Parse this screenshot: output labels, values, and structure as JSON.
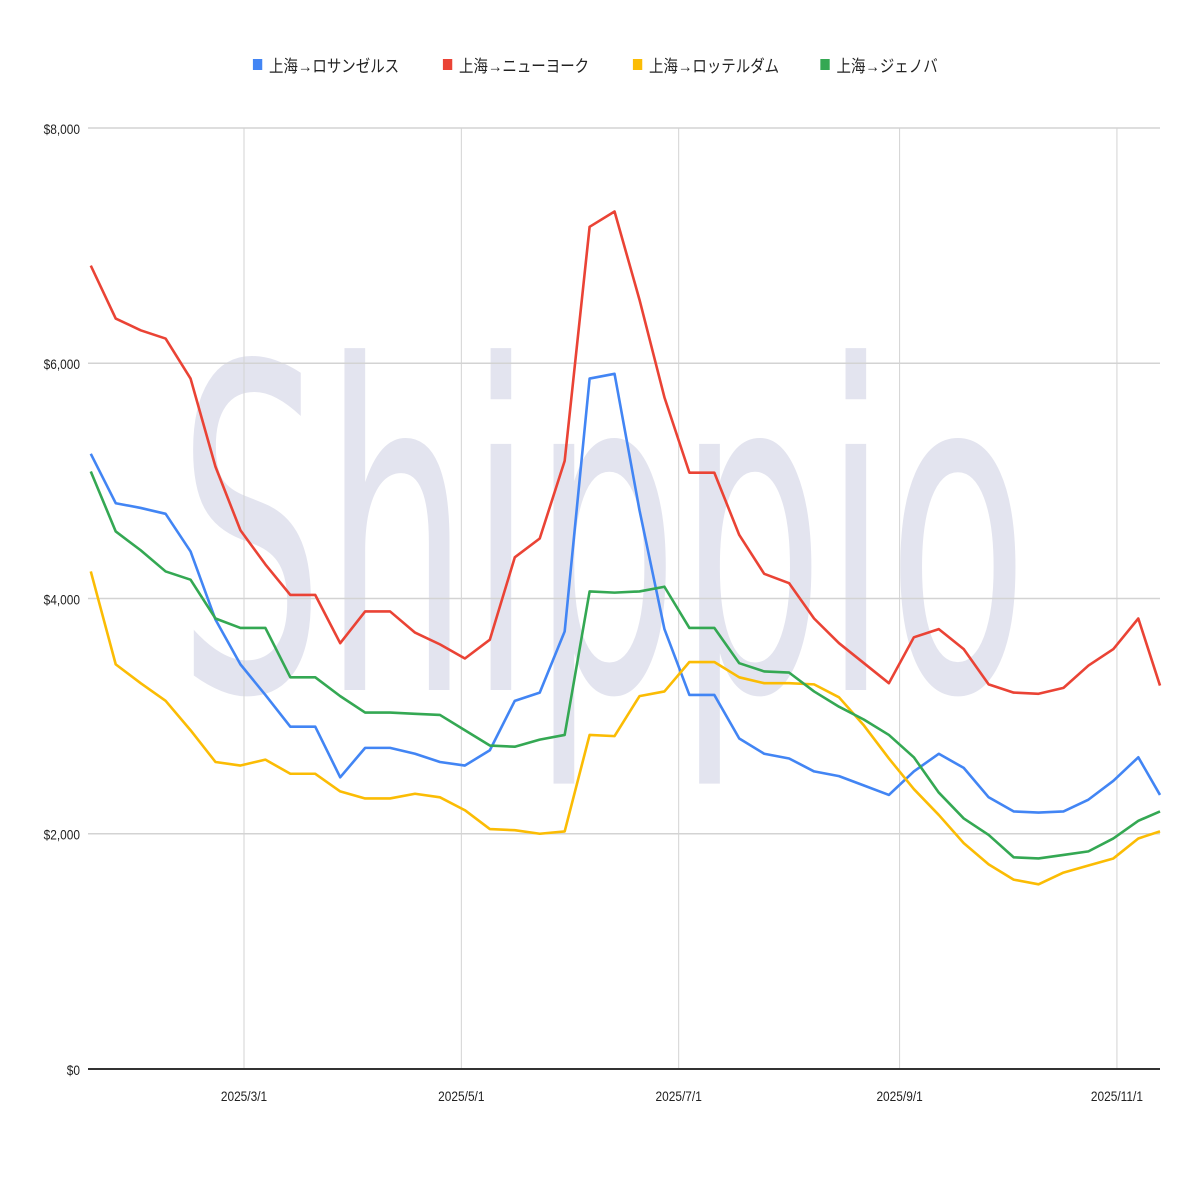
{
  "watermark": "Shippio",
  "chart_data": {
    "type": "line",
    "title": "",
    "xlabel": "",
    "ylabel": "",
    "ylim": [
      0,
      8000
    ],
    "yticks": [
      0,
      2000,
      4000,
      6000,
      8000
    ],
    "ytick_labels": [
      "$0",
      "$2,000",
      "$4,000",
      "$6,000",
      "$8,000"
    ],
    "xticks": [
      "2025-03-01",
      "2025-05-01",
      "2025-07-01",
      "2025-09-01",
      "2025-11-01"
    ],
    "xtick_labels": [
      "2025/3/1",
      "2025/5/1",
      "2025/7/1",
      "2025/9/1",
      "2025/11/1"
    ],
    "grid": true,
    "legend_position": "top",
    "x_start": "2025-01-17",
    "x_interval": "weekly",
    "series": [
      {
        "name": "上海→ロサンゼルス",
        "color": "#4285f4",
        "values": [
          5230,
          4810,
          4770,
          4720,
          4400,
          3820,
          3440,
          3180,
          2910,
          2910,
          2480,
          2730,
          2730,
          2680,
          2610,
          2580,
          2710,
          3130,
          3200,
          3720,
          5870,
          5910,
          4750,
          3740,
          3180,
          3180,
          2810,
          2680,
          2640,
          2530,
          2490,
          2410,
          2330,
          2530,
          2680,
          2560,
          2310,
          2190,
          2180,
          2190,
          2290,
          2450,
          2650,
          2330
        ]
      },
      {
        "name": "上海→ニューヨーク",
        "color": "#ea4335",
        "values": [
          6830,
          6380,
          6280,
          6210,
          5870,
          5120,
          4580,
          4290,
          4030,
          4030,
          3620,
          3890,
          3890,
          3710,
          3610,
          3490,
          3650,
          4350,
          4510,
          5170,
          7160,
          7290,
          6540,
          5710,
          5070,
          5070,
          4540,
          4210,
          4130,
          3830,
          3620,
          3450,
          3280,
          3670,
          3740,
          3570,
          3270,
          3200,
          3190,
          3240,
          3430,
          3570,
          3830,
          3260
        ]
      },
      {
        "name": "上海→ロッテルダム",
        "color": "#fbbc04",
        "values": [
          4230,
          3440,
          3280,
          3130,
          2880,
          2610,
          2580,
          2630,
          2510,
          2510,
          2360,
          2300,
          2300,
          2340,
          2310,
          2200,
          2040,
          2030,
          2000,
          2020,
          2840,
          2830,
          3170,
          3210,
          3460,
          3460,
          3330,
          3280,
          3280,
          3270,
          3160,
          2920,
          2640,
          2380,
          2160,
          1920,
          1740,
          1610,
          1570,
          1670,
          1730,
          1790,
          1960,
          2020
        ]
      },
      {
        "name": "上海→ジェノバ",
        "color": "#34a853",
        "values": [
          5080,
          4570,
          4410,
          4230,
          4160,
          3830,
          3750,
          3750,
          3330,
          3330,
          3170,
          3030,
          3030,
          3020,
          3010,
          2880,
          2750,
          2740,
          2800,
          2840,
          4060,
          4050,
          4060,
          4100,
          3750,
          3750,
          3450,
          3380,
          3370,
          3210,
          3080,
          2970,
          2840,
          2650,
          2350,
          2130,
          1990,
          1800,
          1790,
          1820,
          1850,
          1960,
          2110,
          2190
        ]
      }
    ]
  }
}
